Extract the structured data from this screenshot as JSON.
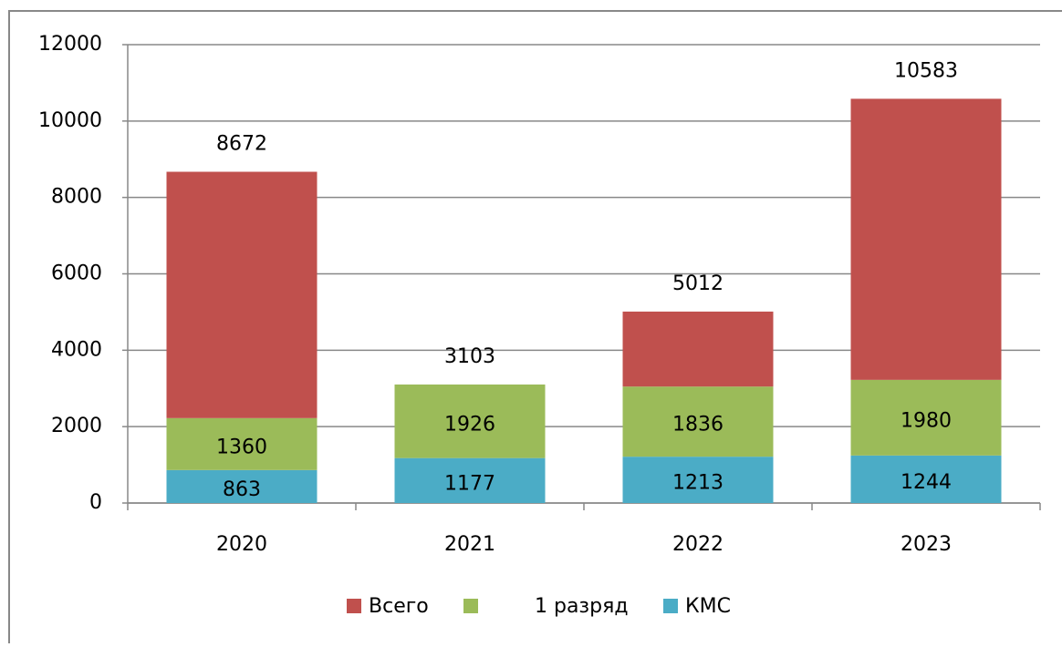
{
  "chart_data": {
    "type": "stacked_bar",
    "categories": [
      "2020",
      "2021",
      "2022",
      "2023"
    ],
    "series": [
      {
        "name": "КМС",
        "color": "#4bacc6",
        "values": [
          863,
          1177,
          1213,
          1244
        ]
      },
      {
        "name": "1 разряд",
        "color": "#9bbb59",
        "values": [
          1360,
          1926,
          1836,
          1980
        ]
      },
      {
        "name": "Всего",
        "color": "#c0504d",
        "values": [
          6449,
          0,
          1963,
          7359
        ]
      }
    ],
    "totals": [
      8672,
      3103,
      5012,
      10583
    ],
    "ylim": [
      0,
      12000
    ],
    "yticks": [
      0,
      2000,
      4000,
      6000,
      8000,
      10000,
      12000
    ],
    "grid": true
  }
}
